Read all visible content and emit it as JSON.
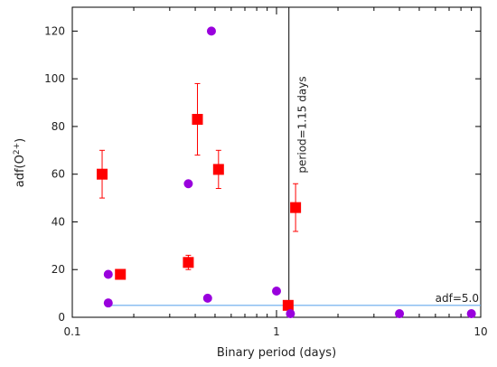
{
  "chart_data": {
    "type": "scatter",
    "xlabel": "Binary period (days)",
    "ylabel": "adf(O",
    "ylabel_sup": "2+",
    "ylabel_end": ")",
    "x_scale": "log",
    "xlim": [
      0.1,
      10
    ],
    "ylim": [
      0,
      130
    ],
    "x_ticks": [
      0.1,
      1,
      10
    ],
    "x_tick_labels": [
      "0.1",
      "1",
      "10"
    ],
    "y_ticks": [
      0,
      20,
      40,
      60,
      80,
      100,
      120
    ],
    "y_tick_labels": [
      "0",
      "20",
      "40",
      "60",
      "80",
      "100",
      "120"
    ],
    "grid": false,
    "series": [
      {
        "marker": "square",
        "color": "#ff0000",
        "points": [
          {
            "x": 0.14,
            "y": 60,
            "ylow": 50,
            "yhigh": 70
          },
          {
            "x": 0.172,
            "y": 18
          },
          {
            "x": 0.37,
            "y": 23,
            "ylow": 20,
            "yhigh": 26
          },
          {
            "x": 0.41,
            "y": 83,
            "ylow": 68,
            "yhigh": 98
          },
          {
            "x": 0.52,
            "y": 62,
            "ylow": 54,
            "yhigh": 70
          },
          {
            "x": 1.14,
            "y": 5
          },
          {
            "x": 1.24,
            "y": 46,
            "ylow": 36,
            "yhigh": 56
          }
        ]
      },
      {
        "marker": "circle",
        "color": "#9900dd",
        "points": [
          {
            "x": 0.15,
            "y": 18
          },
          {
            "x": 0.15,
            "y": 6
          },
          {
            "x": 0.37,
            "y": 56
          },
          {
            "x": 0.46,
            "y": 8
          },
          {
            "x": 0.48,
            "y": 120
          },
          {
            "x": 1.0,
            "y": 11
          },
          {
            "x": 1.17,
            "y": 1.5
          },
          {
            "x": 4.0,
            "y": 1.5
          },
          {
            "x": 9.0,
            "y": 1.5
          }
        ]
      }
    ],
    "reference_lines": [
      {
        "orientation": "vertical",
        "value": 1.15,
        "label": "period=1.15 days",
        "color": "#000000"
      },
      {
        "orientation": "horizontal",
        "value": 5.0,
        "label": "adf=5.0",
        "color": "#66aaee"
      }
    ]
  }
}
